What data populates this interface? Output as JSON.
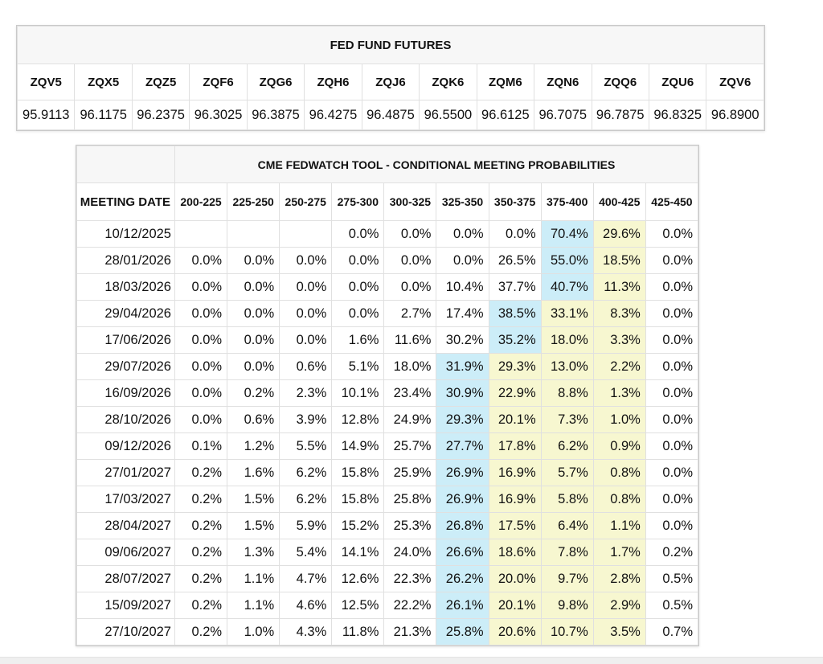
{
  "futures": {
    "title": "FED FUND FUTURES",
    "contracts": [
      "ZQV5",
      "ZQX5",
      "ZQZ5",
      "ZQF6",
      "ZQG6",
      "ZQH6",
      "ZQJ6",
      "ZQK6",
      "ZQM6",
      "ZQN6",
      "ZQQ6",
      "ZQU6",
      "ZQV6"
    ],
    "prices": [
      "95.9113",
      "96.1175",
      "96.2375",
      "96.3025",
      "96.3875",
      "96.4275",
      "96.4875",
      "96.5500",
      "96.6125",
      "96.7075",
      "96.7875",
      "96.8325",
      "96.8900"
    ]
  },
  "fedwatch": {
    "title": "CME FEDWATCH TOOL - CONDITIONAL MEETING PROBABILITIES",
    "date_header": "MEETING DATE",
    "bins": [
      "200-225",
      "225-250",
      "250-275",
      "275-300",
      "300-325",
      "325-350",
      "350-375",
      "375-400",
      "400-425",
      "425-450"
    ],
    "colors": {
      "max_cell": "#ccedf8",
      "trail_cell": "#f7f7d0"
    },
    "rows": [
      {
        "date": "10/12/2025",
        "max": 7,
        "values": [
          "",
          "",
          "",
          "0.0%",
          "0.0%",
          "0.0%",
          "0.0%",
          "70.4%",
          "29.6%",
          "0.0%"
        ]
      },
      {
        "date": "28/01/2026",
        "max": 7,
        "values": [
          "0.0%",
          "0.0%",
          "0.0%",
          "0.0%",
          "0.0%",
          "0.0%",
          "26.5%",
          "55.0%",
          "18.5%",
          "0.0%"
        ]
      },
      {
        "date": "18/03/2026",
        "max": 7,
        "values": [
          "0.0%",
          "0.0%",
          "0.0%",
          "0.0%",
          "0.0%",
          "10.4%",
          "37.7%",
          "40.7%",
          "11.3%",
          "0.0%"
        ]
      },
      {
        "date": "29/04/2026",
        "max": 6,
        "values": [
          "0.0%",
          "0.0%",
          "0.0%",
          "0.0%",
          "2.7%",
          "17.4%",
          "38.5%",
          "33.1%",
          "8.3%",
          "0.0%"
        ]
      },
      {
        "date": "17/06/2026",
        "max": 6,
        "values": [
          "0.0%",
          "0.0%",
          "0.0%",
          "1.6%",
          "11.6%",
          "30.2%",
          "35.2%",
          "18.0%",
          "3.3%",
          "0.0%"
        ]
      },
      {
        "date": "29/07/2026",
        "max": 5,
        "values": [
          "0.0%",
          "0.0%",
          "0.6%",
          "5.1%",
          "18.0%",
          "31.9%",
          "29.3%",
          "13.0%",
          "2.2%",
          "0.0%"
        ]
      },
      {
        "date": "16/09/2026",
        "max": 5,
        "values": [
          "0.0%",
          "0.2%",
          "2.3%",
          "10.1%",
          "23.4%",
          "30.9%",
          "22.9%",
          "8.8%",
          "1.3%",
          "0.0%"
        ]
      },
      {
        "date": "28/10/2026",
        "max": 5,
        "values": [
          "0.0%",
          "0.6%",
          "3.9%",
          "12.8%",
          "24.9%",
          "29.3%",
          "20.1%",
          "7.3%",
          "1.0%",
          "0.0%"
        ]
      },
      {
        "date": "09/12/2026",
        "max": 5,
        "values": [
          "0.1%",
          "1.2%",
          "5.5%",
          "14.9%",
          "25.7%",
          "27.7%",
          "17.8%",
          "6.2%",
          "0.9%",
          "0.0%"
        ]
      },
      {
        "date": "27/01/2027",
        "max": 5,
        "values": [
          "0.2%",
          "1.6%",
          "6.2%",
          "15.8%",
          "25.9%",
          "26.9%",
          "16.9%",
          "5.7%",
          "0.8%",
          "0.0%"
        ]
      },
      {
        "date": "17/03/2027",
        "max": 5,
        "values": [
          "0.2%",
          "1.5%",
          "6.2%",
          "15.8%",
          "25.8%",
          "26.9%",
          "16.9%",
          "5.8%",
          "0.8%",
          "0.0%"
        ]
      },
      {
        "date": "28/04/2027",
        "max": 5,
        "values": [
          "0.2%",
          "1.5%",
          "5.9%",
          "15.2%",
          "25.3%",
          "26.8%",
          "17.5%",
          "6.4%",
          "1.1%",
          "0.0%"
        ]
      },
      {
        "date": "09/06/2027",
        "max": 5,
        "values": [
          "0.2%",
          "1.3%",
          "5.4%",
          "14.1%",
          "24.0%",
          "26.6%",
          "18.6%",
          "7.8%",
          "1.7%",
          "0.2%"
        ]
      },
      {
        "date": "28/07/2027",
        "max": 5,
        "values": [
          "0.2%",
          "1.1%",
          "4.7%",
          "12.6%",
          "22.3%",
          "26.2%",
          "20.0%",
          "9.7%",
          "2.8%",
          "0.5%"
        ]
      },
      {
        "date": "15/09/2027",
        "max": 5,
        "values": [
          "0.2%",
          "1.1%",
          "4.6%",
          "12.5%",
          "22.2%",
          "26.1%",
          "20.1%",
          "9.8%",
          "2.9%",
          "0.5%"
        ]
      },
      {
        "date": "27/10/2027",
        "max": 5,
        "values": [
          "0.2%",
          "1.0%",
          "4.3%",
          "11.8%",
          "21.3%",
          "25.8%",
          "20.6%",
          "10.7%",
          "3.5%",
          "0.7%"
        ]
      }
    ]
  }
}
